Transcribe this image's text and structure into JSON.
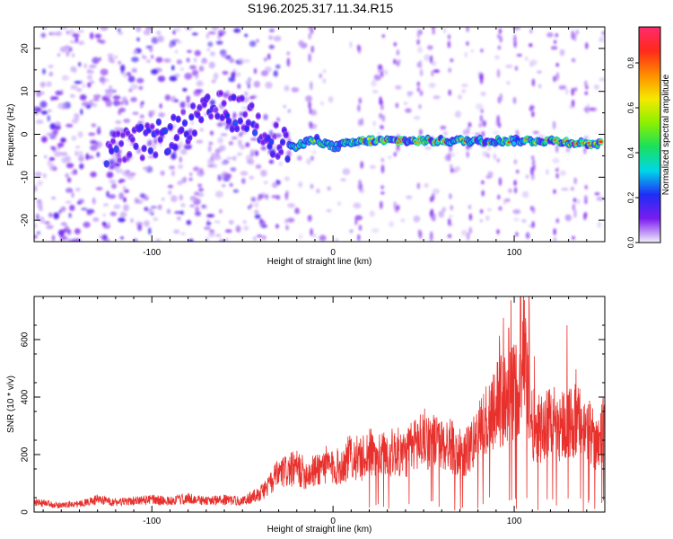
{
  "chart_data": [
    {
      "type": "heatmap",
      "title": "S196.2025.317.11.34.R15",
      "xlabel": "Height of straight line (km)",
      "ylabel": "Frequency (Hz)",
      "xlim": [
        -165,
        150
      ],
      "ylim": [
        -25,
        25
      ],
      "xticks": [
        -100,
        0,
        100
      ],
      "yticks": [
        -20,
        -10,
        0,
        10,
        20
      ],
      "colorbar": {
        "label": "Normalized spectral amplitude",
        "ticks": [
          0.0,
          0.2,
          0.4,
          0.6,
          0.8
        ],
        "range": [
          0,
          0.96
        ],
        "colors": [
          "#f2f0fb",
          "#7a1cf0",
          "#1f2df5",
          "#00d7e8",
          "#19e05e",
          "#8cf000",
          "#f5e900",
          "#ff8c00",
          "#ff2a1a",
          "#ff2a6e"
        ]
      },
      "ridge": {
        "x": [
          -115,
          -95,
          -80,
          -65,
          -45,
          -30,
          -20,
          -10,
          0,
          10,
          20,
          40,
          60,
          80,
          100,
          120,
          145
        ],
        "y": [
          -3,
          -1,
          2,
          6,
          4,
          -2,
          -3,
          -1,
          -3,
          -2,
          -1.5,
          -1.5,
          -1.5,
          -1.5,
          -1.5,
          -1.5,
          -2.3
        ],
        "peak_amplitude": 0.92
      }
    },
    {
      "type": "line",
      "title": "",
      "xlabel": "Height of straight line (km)",
      "ylabel": "SNR (10 * v/v)",
      "xlim": [
        -165,
        150
      ],
      "ylim": [
        0,
        750
      ],
      "xticks": [
        -100,
        0,
        100
      ],
      "yticks": [
        0,
        200,
        400,
        600
      ],
      "color": "#e8302c",
      "series": [
        {
          "name": "SNR",
          "x": [
            -165,
            -150,
            -140,
            -130,
            -120,
            -110,
            -100,
            -90,
            -80,
            -70,
            -60,
            -50,
            -40,
            -35,
            -30,
            -25,
            -20,
            -15,
            -10,
            -5,
            0,
            5,
            10,
            15,
            20,
            25,
            30,
            35,
            40,
            45,
            50,
            55,
            60,
            65,
            70,
            75,
            80,
            85,
            90,
            95,
            100,
            103,
            105,
            110,
            115,
            120,
            125,
            130,
            135,
            140,
            145,
            150
          ],
          "values": [
            35,
            25,
            30,
            45,
            35,
            40,
            45,
            40,
            50,
            40,
            45,
            40,
            70,
            100,
            140,
            150,
            160,
            140,
            150,
            175,
            160,
            170,
            210,
            190,
            220,
            200,
            215,
            220,
            210,
            250,
            270,
            260,
            240,
            250,
            190,
            230,
            280,
            340,
            410,
            400,
            440,
            480,
            600,
            320,
            310,
            340,
            320,
            330,
            330,
            300,
            260,
            320
          ]
        }
      ]
    }
  ]
}
